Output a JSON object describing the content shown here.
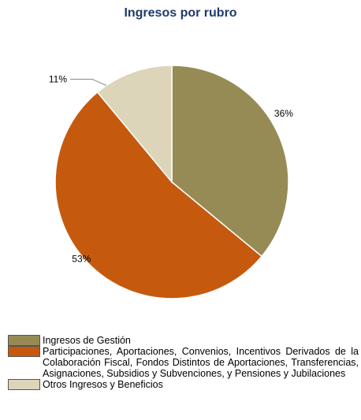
{
  "chart_data": {
    "type": "pie",
    "title": "Ingresos por rubro",
    "slices": [
      {
        "name": "Ingresos de Gestión",
        "value": 36,
        "label": "36%",
        "color": "#968b55"
      },
      {
        "name": "Participaciones, Aportaciones, Convenios, Incentivos Derivados de la Colaboración Fiscal, Fondos Distintos de Aportaciones, Transferencias, Asignaciones, Subsidios y Subvenciones, y Pensiones y Jubilaciones",
        "value": 53,
        "label": "53%",
        "color": "#c55a0e"
      },
      {
        "name": "Otros Ingresos y Beneficios",
        "value": 11,
        "label": "11%",
        "color": "#dcd5b9"
      }
    ],
    "legend_position": "bottom"
  }
}
